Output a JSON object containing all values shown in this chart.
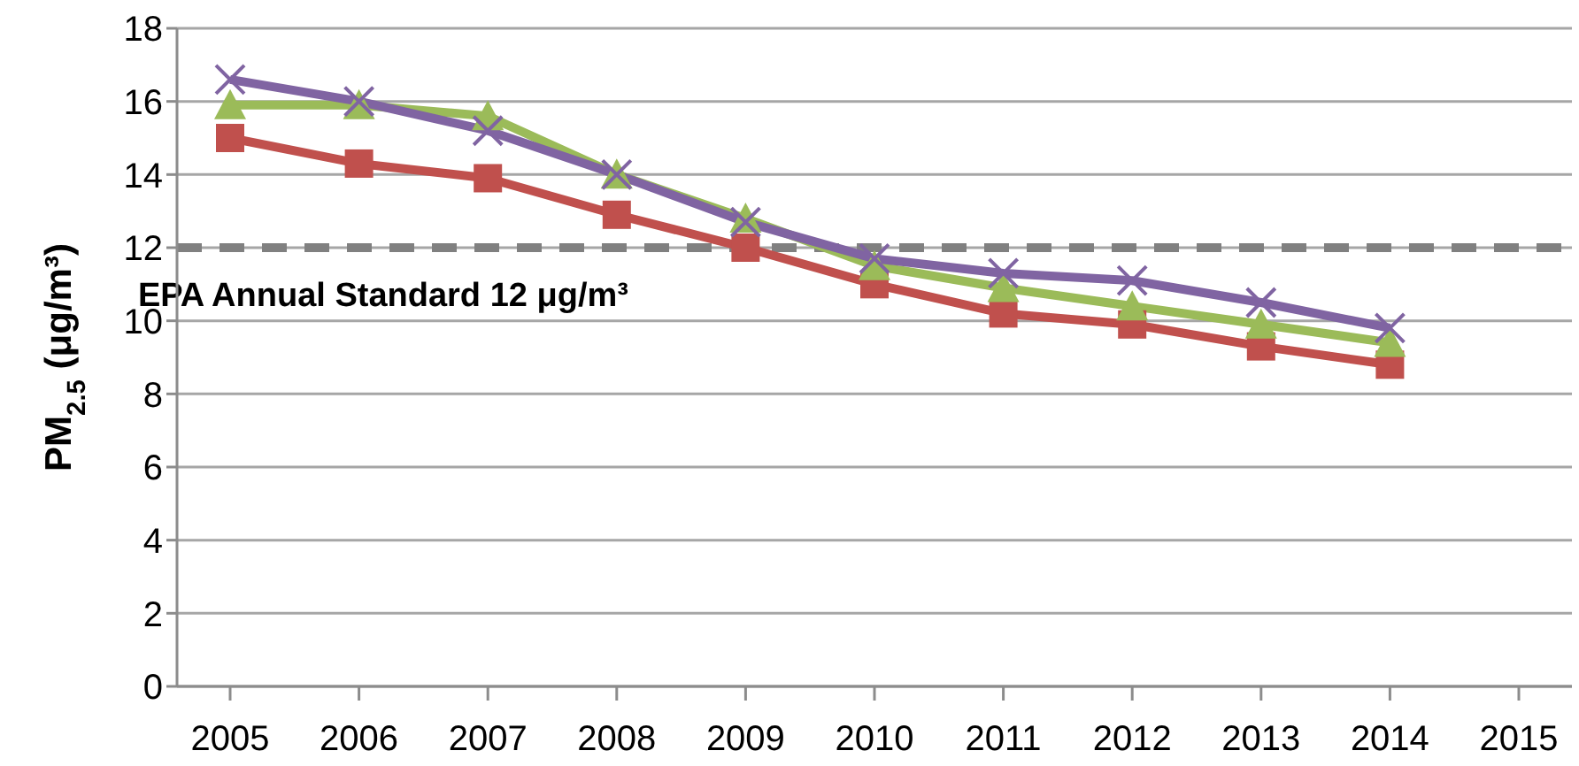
{
  "chart_data": {
    "type": "line",
    "ylabel": "PM$_{2.5}$ (μg/m³)",
    "categories": [
      "2005",
      "2006",
      "2007",
      "2008",
      "2009",
      "2010",
      "2011",
      "2012",
      "2013",
      "2014",
      "2015"
    ],
    "series": [
      {
        "color": "#c0504d",
        "marker": "square",
        "values": [
          15.0,
          14.3,
          13.9,
          12.9,
          12.0,
          11.0,
          10.2,
          9.9,
          9.3,
          8.8,
          null
        ]
      },
      {
        "color": "#9bbb59",
        "marker": "triangle",
        "values": [
          15.9,
          15.9,
          15.6,
          14.0,
          12.8,
          11.5,
          10.9,
          10.4,
          9.9,
          9.4,
          null
        ]
      },
      {
        "color": "#8064a2",
        "marker": "cross",
        "values": [
          16.6,
          16.0,
          15.2,
          14.0,
          12.7,
          11.7,
          11.3,
          11.1,
          10.5,
          9.8,
          null
        ]
      }
    ],
    "ylim": [
      0,
      18
    ],
    "yticks": [
      0,
      2,
      4,
      6,
      8,
      10,
      12,
      14,
      16,
      18
    ],
    "grid": "y",
    "legend": false,
    "line_style": "solid",
    "ref_lines": [
      {
        "axis": "y",
        "value": 12,
        "label": "EPA Annual Standard 12 μg/m³",
        "color": "#808080",
        "line_style": "dashed"
      }
    ]
  }
}
